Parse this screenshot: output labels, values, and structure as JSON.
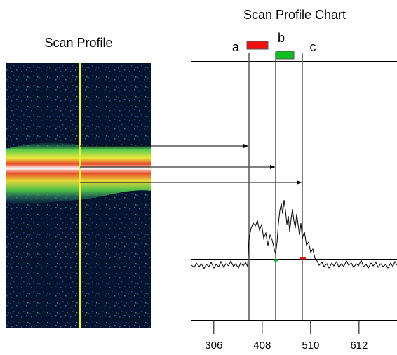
{
  "left_panel": {
    "title": "Scan Profile"
  },
  "right_panel": {
    "title": "Scan Profile Chart",
    "markers": [
      "a",
      "b",
      "c"
    ],
    "axis": {
      "xlim": [
        259,
        692
      ],
      "xticks": [
        306,
        408,
        510,
        612
      ]
    }
  }
}
